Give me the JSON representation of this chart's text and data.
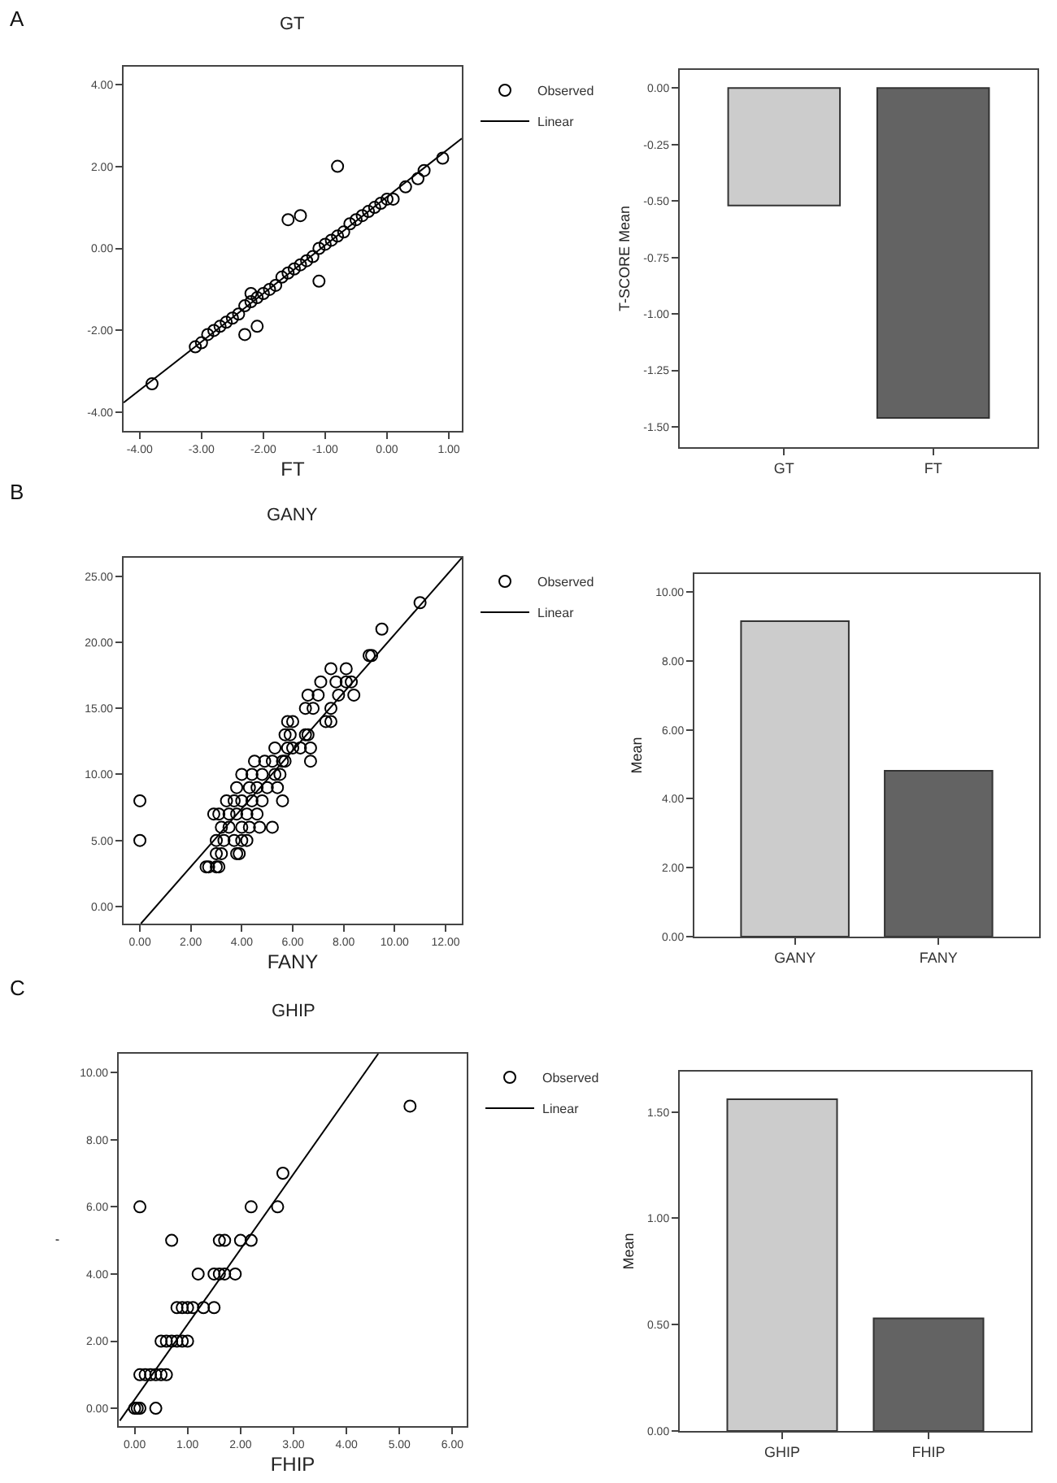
{
  "chart_data": [
    {
      "type": "scatter",
      "title": "GT",
      "xlabel": "FT",
      "annotations": [
        "A"
      ],
      "legend": "top right",
      "xlim": [
        -4.26,
        1.21
      ],
      "ylim": [
        -4.45,
        4.43
      ],
      "xticks": [
        {
          "value": -4,
          "label": "-4.00"
        },
        {
          "value": -3,
          "label": "-3.00"
        },
        {
          "value": -2,
          "label": "-2.00"
        },
        {
          "value": -1,
          "label": "-1.00"
        },
        {
          "value": 0,
          "label": "0.00"
        },
        {
          "value": 1,
          "label": "1.00"
        }
      ],
      "yticks": [
        {
          "value": -4,
          "label": "-4.00"
        },
        {
          "value": -2,
          "label": "-2.00"
        },
        {
          "value": 0,
          "label": "0.00"
        },
        {
          "value": 2,
          "label": "2.00"
        },
        {
          "value": 4,
          "label": "4.00"
        }
      ],
      "series": [
        {
          "name": "Observed",
          "type": "scatter",
          "marker": "circle",
          "color": "#000000",
          "x": [
            -3.8,
            -0.8,
            -1.6,
            -1.4,
            -1.1,
            -2.3,
            -2.1,
            -2.2,
            0.9,
            0.6,
            0.5,
            0.3,
            -3.1,
            -3.0,
            -2.9,
            -2.8,
            -2.7,
            -2.6,
            -2.5,
            -2.4,
            -2.3,
            -2.2,
            -2.1,
            -2.0,
            -1.9,
            -1.8,
            -1.7,
            -1.6,
            -1.5,
            -1.4,
            -1.3,
            -1.2,
            -1.1,
            -1.0,
            -0.9,
            -0.8,
            -0.7,
            -0.6,
            -0.5,
            -0.4,
            -0.3,
            -0.2,
            -0.1,
            0.0,
            0.1
          ],
          "values": [
            -3.3,
            2.0,
            0.7,
            0.8,
            -0.8,
            -2.1,
            -1.9,
            -1.1,
            2.2,
            1.9,
            1.7,
            1.5,
            -2.4,
            -2.3,
            -2.1,
            -2.0,
            -1.9,
            -1.8,
            -1.7,
            -1.6,
            -1.4,
            -1.3,
            -1.2,
            -1.1,
            -1.0,
            -0.9,
            -0.7,
            -0.6,
            -0.5,
            -0.4,
            -0.3,
            -0.2,
            -0.0,
            0.1,
            0.2,
            0.3,
            0.4,
            0.6,
            0.7,
            0.8,
            0.9,
            1.0,
            1.1,
            1.2,
            1.2
          ]
        },
        {
          "name": "Linear",
          "type": "line",
          "marker": "none",
          "line_style": "solid",
          "color": "#000000",
          "x": [
            -4.26,
            1.21
          ],
          "values": [
            -3.76,
            2.68
          ]
        }
      ]
    },
    {
      "type": "bar",
      "ylabel": "T-SCORE Mean",
      "categories": [
        "GT",
        "FT"
      ],
      "values": [
        -0.52,
        -1.46
      ],
      "colors": [
        "#cccccc",
        "#636363"
      ],
      "ylim": [
        -1.59,
        0.08
      ],
      "yticks": [
        {
          "value": -1.5,
          "label": "-1.50"
        },
        {
          "value": -1.25,
          "label": "-1.25"
        },
        {
          "value": -1,
          "label": "-1.00"
        },
        {
          "value": -0.75,
          "label": "-0.75"
        },
        {
          "value": -0.5,
          "label": "-0.50"
        },
        {
          "value": -0.25,
          "label": "-0.25"
        },
        {
          "value": 0,
          "label": "0.00"
        }
      ]
    },
    {
      "type": "scatter",
      "title": "GANY",
      "xlabel": "FANY",
      "annotations": [
        "B"
      ],
      "legend": "top right",
      "xlim": [
        -0.64,
        12.64
      ],
      "ylim": [
        -1.3,
        26.4
      ],
      "xticks": [
        {
          "value": 0,
          "label": "0.00"
        },
        {
          "value": 2,
          "label": "2.00"
        },
        {
          "value": 4,
          "label": "4.00"
        },
        {
          "value": 6,
          "label": "6.00"
        },
        {
          "value": 8,
          "label": "8.00"
        },
        {
          "value": 10,
          "label": "10.00"
        },
        {
          "value": 12,
          "label": "12.00"
        }
      ],
      "yticks": [
        {
          "value": 0,
          "label": "0.00"
        },
        {
          "value": 5,
          "label": "5.00"
        },
        {
          "value": 10,
          "label": "10.00"
        },
        {
          "value": 15,
          "label": "15.00"
        },
        {
          "value": 20,
          "label": "20.00"
        },
        {
          "value": 25,
          "label": "25.00"
        }
      ],
      "series": [
        {
          "name": "Observed",
          "type": "scatter",
          "marker": "circle",
          "color": "#000000",
          "x": [
            0,
            0,
            11,
            9.5,
            9.1,
            9,
            7.5,
            8.1,
            7.1,
            7.7,
            8.1,
            8.3,
            6.6,
            7,
            7.8,
            8.4,
            6.5,
            6.8,
            7.5,
            7.3,
            7.5,
            5.8,
            6,
            5.7,
            5.9,
            6.5,
            6.6,
            5.3,
            5.8,
            6,
            6.3,
            6.7,
            4.5,
            4.9,
            5.2,
            5.6,
            5.7,
            6.7,
            4,
            4.4,
            4.8,
            5.3,
            5.5,
            3.8,
            4.3,
            4.6,
            5,
            5.4,
            3.4,
            3.7,
            4,
            4.4,
            4.8,
            5.6,
            2.9,
            3.1,
            3.5,
            3.8,
            4.2,
            4.6,
            3.2,
            3.5,
            4,
            4.3,
            4.7,
            5.2,
            3,
            3.3,
            3.7,
            4,
            4.2,
            3,
            3.2,
            3.8,
            3.9,
            2.6,
            2.7,
            3,
            3.1
          ],
          "values": [
            8,
            5,
            23,
            21,
            19,
            19,
            18,
            18,
            17,
            17,
            17,
            17,
            16,
            16,
            16,
            16,
            15,
            15,
            15,
            14,
            14,
            14,
            14,
            13,
            13,
            13,
            13,
            12,
            12,
            12,
            12,
            12,
            11,
            11,
            11,
            11,
            11,
            11,
            10,
            10,
            10,
            10,
            10,
            9,
            9,
            9,
            9,
            9,
            8,
            8,
            8,
            8,
            8,
            8,
            7,
            7,
            7,
            7,
            7,
            7,
            6,
            6,
            6,
            6,
            6,
            6,
            5,
            5,
            5,
            5,
            5,
            4,
            4,
            4,
            4,
            3,
            3,
            3,
            3
          ]
        },
        {
          "name": "Linear",
          "type": "line",
          "marker": "none",
          "line_style": "solid",
          "color": "#000000",
          "x": [
            0.04,
            12.64
          ],
          "values": [
            -1.3,
            26.4
          ]
        }
      ]
    },
    {
      "type": "bar",
      "ylabel": "Mean",
      "categories": [
        "GANY",
        "FANY"
      ],
      "values": [
        9.15,
        4.81
      ],
      "colors": [
        "#cccccc",
        "#636363"
      ],
      "ylim": [
        0,
        10.52
      ],
      "yticks": [
        {
          "value": 0,
          "label": "0.00"
        },
        {
          "value": 2,
          "label": "2.00"
        },
        {
          "value": 4,
          "label": "4.00"
        },
        {
          "value": 6,
          "label": "6.00"
        },
        {
          "value": 8,
          "label": "8.00"
        },
        {
          "value": 10,
          "label": "10.00"
        }
      ]
    },
    {
      "type": "scatter",
      "title": "GHIP",
      "xlabel": "FHIP",
      "ylabel": "'",
      "annotations": [
        "C"
      ],
      "legend": "top right",
      "xlim": [
        -0.3,
        6.27
      ],
      "ylim": [
        -0.53,
        10.56
      ],
      "xticks": [
        {
          "value": 0,
          "label": "0.00"
        },
        {
          "value": 1,
          "label": "1.00"
        },
        {
          "value": 2,
          "label": "2.00"
        },
        {
          "value": 3,
          "label": "3.00"
        },
        {
          "value": 4,
          "label": "4.00"
        },
        {
          "value": 5,
          "label": "5.00"
        },
        {
          "value": 6,
          "label": "6.00"
        }
      ],
      "yticks": [
        {
          "value": 0,
          "label": "0.00"
        },
        {
          "value": 2,
          "label": "2.00"
        },
        {
          "value": 4,
          "label": "4.00"
        },
        {
          "value": 6,
          "label": "6.00"
        },
        {
          "value": 8,
          "label": "8.00"
        },
        {
          "value": 10,
          "label": "10.00"
        }
      ],
      "series": [
        {
          "name": "Observed",
          "type": "scatter",
          "marker": "circle",
          "color": "#000000",
          "x": [
            5.2,
            2.8,
            0.1,
            2.2,
            2.7,
            0.7,
            1.6,
            1.7,
            2,
            2.2,
            1.2,
            1.5,
            1.6,
            1.7,
            1.9,
            0.8,
            0.9,
            1,
            1.1,
            1.3,
            1.5,
            0.5,
            0.6,
            0.7,
            0.8,
            0.9,
            1,
            0.1,
            0.2,
            0.3,
            0.4,
            0.5,
            0.6,
            0,
            0.05,
            0.1,
            0.4
          ],
          "values": [
            9,
            7,
            6,
            6,
            6,
            5,
            5,
            5,
            5,
            5,
            4,
            4,
            4,
            4,
            4,
            3,
            3,
            3,
            3,
            3,
            3,
            2,
            2,
            2,
            2,
            2,
            2,
            1,
            1,
            1,
            1,
            1,
            1,
            0,
            0,
            0,
            0
          ]
        },
        {
          "name": "Linear",
          "type": "line",
          "marker": "none",
          "line_style": "solid",
          "color": "#000000",
          "x": [
            -0.28,
            4.6
          ],
          "values": [
            -0.37,
            10.56
          ]
        }
      ]
    },
    {
      "type": "bar",
      "ylabel": "Mean",
      "categories": [
        "GHIP",
        "FHIP"
      ],
      "values": [
        1.56,
        0.53
      ],
      "colors": [
        "#cccccc",
        "#636363"
      ],
      "ylim": [
        0,
        1.69
      ],
      "yticks": [
        {
          "value": 0,
          "label": "0.00"
        },
        {
          "value": 0.5,
          "label": "0.50"
        },
        {
          "value": 1,
          "label": "1.00"
        },
        {
          "value": 1.5,
          "label": "1.50"
        }
      ]
    }
  ]
}
